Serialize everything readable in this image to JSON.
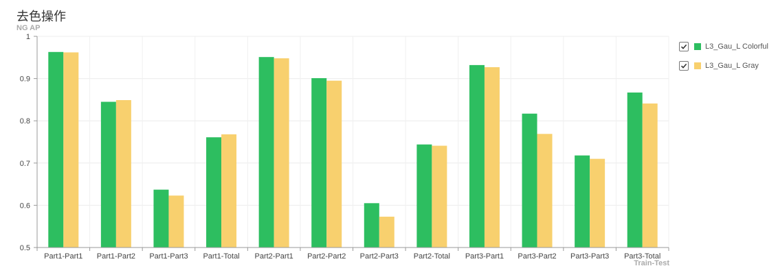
{
  "chart_data": {
    "type": "bar",
    "title": "去色操作",
    "ylabel": "NG AP",
    "xlabel": "Train-Test",
    "ylim": [
      0.5,
      1
    ],
    "yticks": [
      "0.5",
      "0.6",
      "0.7",
      "0.8",
      "0.9",
      "1"
    ],
    "grid": true,
    "legend_position": "right",
    "categories": [
      "Part1-Part1",
      "Part1-Part2",
      "Part1-Part3",
      "Part1-Total",
      "Part2-Part1",
      "Part2-Part2",
      "Part2-Part3",
      "Part2-Total",
      "Part3-Part1",
      "Part3-Part2",
      "Part3-Part3",
      "Part3-Total"
    ],
    "series": [
      {
        "name": "L3_Gau_L Colorful",
        "color": "#2dbe60",
        "checked": true,
        "values": [
          0.963,
          0.845,
          0.637,
          0.761,
          0.951,
          0.901,
          0.605,
          0.744,
          0.932,
          0.817,
          0.718,
          0.867
        ]
      },
      {
        "name": "L3_Gau_L Gray",
        "color": "#f8d06e",
        "checked": true,
        "values": [
          0.962,
          0.849,
          0.623,
          0.768,
          0.948,
          0.895,
          0.573,
          0.741,
          0.927,
          0.769,
          0.71,
          0.841
        ]
      }
    ]
  }
}
